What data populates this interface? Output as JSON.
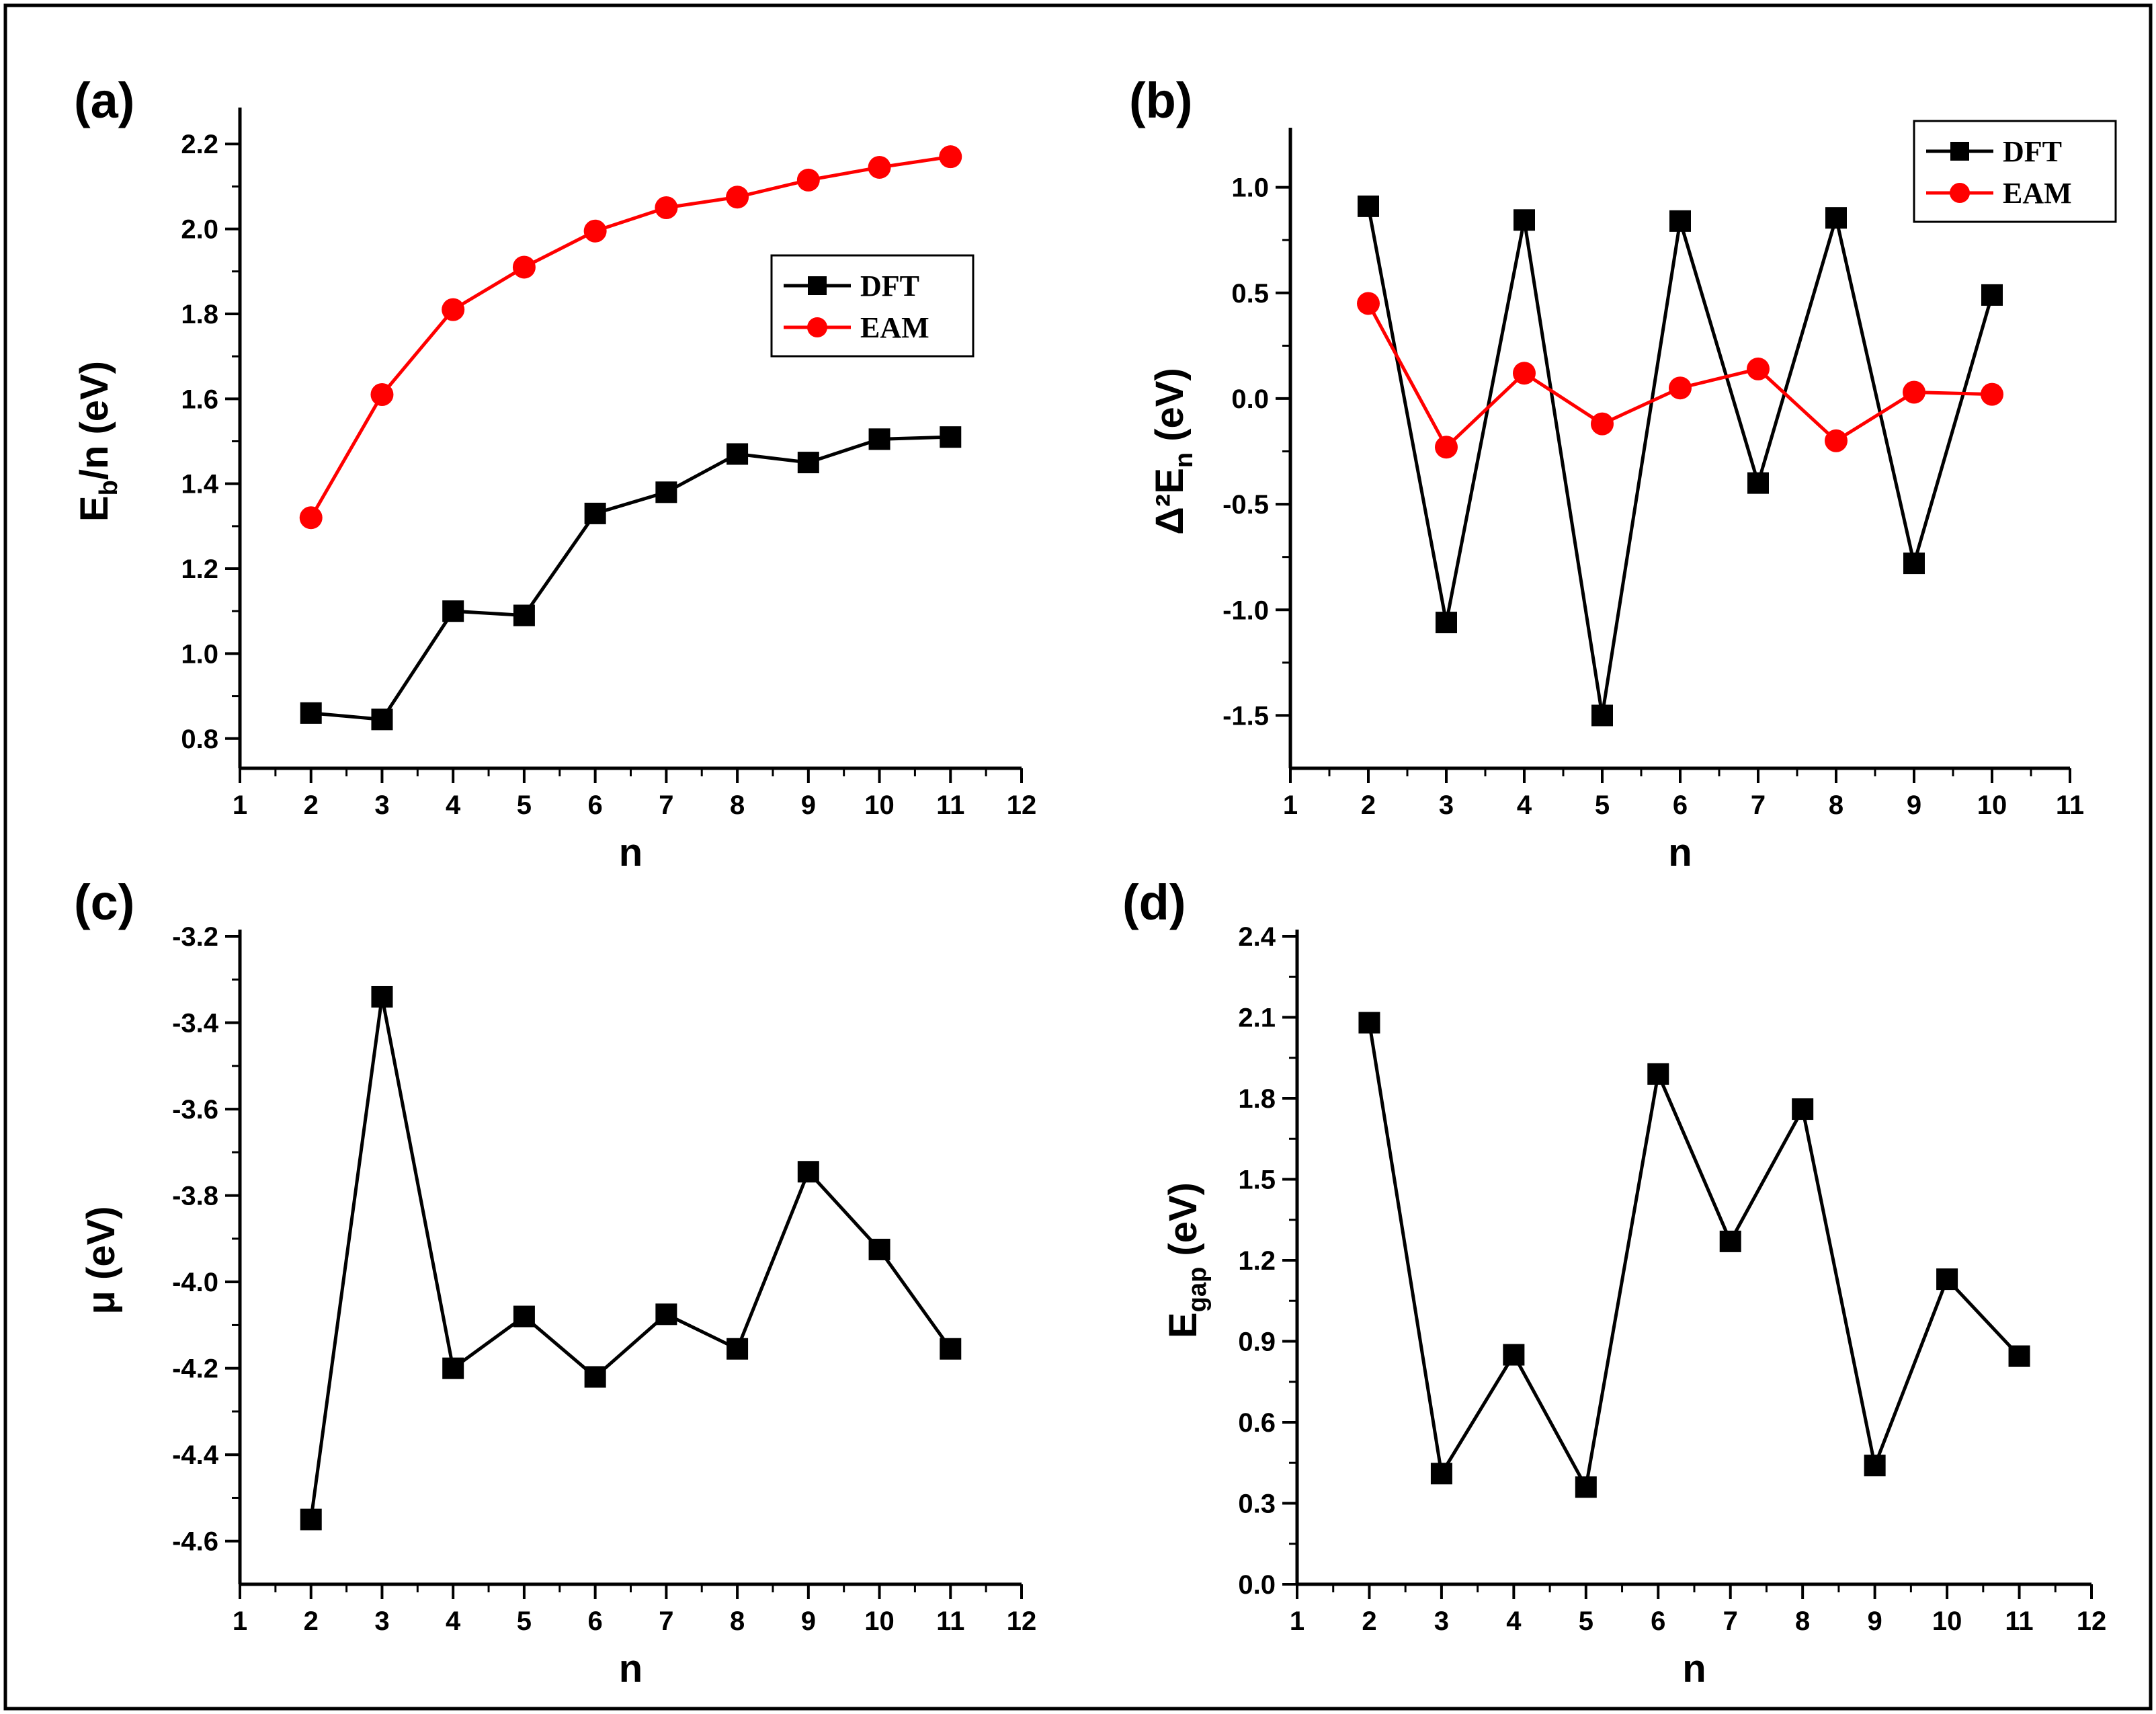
{
  "colors": {
    "dft": "#000000",
    "eam": "#ff0000",
    "axis": "#000000"
  },
  "chart_data": [
    {
      "panel": "(a)",
      "type": "line",
      "x": [
        2,
        3,
        4,
        5,
        6,
        7,
        8,
        9,
        10,
        11
      ],
      "xlabel": "n",
      "ylabel_main": "E",
      "ylabel_sub": "b",
      "ylabel_rest": "/n (eV)",
      "xlim": [
        1,
        12
      ],
      "ylim": [
        0.73,
        2.27
      ],
      "xticks": [
        1,
        2,
        3,
        4,
        5,
        6,
        7,
        8,
        9,
        10,
        11,
        12
      ],
      "yticks": [
        0.8,
        1.0,
        1.2,
        1.4,
        1.6,
        1.8,
        2.0,
        2.2
      ],
      "ytick_labels": [
        "0.8",
        "1.0",
        "1.2",
        "1.4",
        "1.6",
        "1.8",
        "2.0",
        "2.2"
      ],
      "legend": "center-right",
      "series": [
        {
          "name": "DFT",
          "marker": "square",
          "color": "#000000",
          "values": [
            0.86,
            0.845,
            1.1,
            1.09,
            1.33,
            1.38,
            1.47,
            1.45,
            1.505,
            1.51
          ]
        },
        {
          "name": "EAM",
          "marker": "circle",
          "color": "#ff0000",
          "values": [
            1.32,
            1.61,
            1.81,
            1.91,
            1.995,
            2.05,
            2.075,
            2.115,
            2.145,
            2.17
          ]
        }
      ]
    },
    {
      "panel": "(b)",
      "type": "line",
      "x": [
        2,
        3,
        4,
        5,
        6,
        7,
        8,
        9,
        10
      ],
      "xlabel": "n",
      "ylabel_main": "Δ²E",
      "ylabel_sub": "n",
      "ylabel_rest": " (eV)",
      "xlim": [
        1,
        11
      ],
      "ylim": [
        -1.75,
        1.25
      ],
      "xticks": [
        1,
        2,
        3,
        4,
        5,
        6,
        7,
        8,
        9,
        10,
        11
      ],
      "yticks": [
        -1.5,
        -1.0,
        -0.5,
        0.0,
        0.5,
        1.0
      ],
      "ytick_labels": [
        "-1.5",
        "-1.0",
        "-0.5",
        "0.0",
        "0.5",
        "1.0"
      ],
      "legend": "top-right",
      "series": [
        {
          "name": "DFT",
          "marker": "square",
          "color": "#000000",
          "values": [
            0.91,
            -1.06,
            0.845,
            -1.5,
            0.84,
            -0.4,
            0.855,
            -0.78,
            0.49
          ]
        },
        {
          "name": "EAM",
          "marker": "circle",
          "color": "#ff0000",
          "values": [
            0.45,
            -0.23,
            0.12,
            -0.12,
            0.05,
            0.14,
            -0.2,
            0.03,
            0.02
          ]
        }
      ]
    },
    {
      "panel": "(c)",
      "type": "line",
      "x": [
        2,
        3,
        4,
        5,
        6,
        7,
        8,
        9,
        10,
        11
      ],
      "xlabel": "n",
      "ylabel_main": "μ (eV)",
      "ylabel_sub": "",
      "ylabel_rest": "",
      "xlim": [
        1,
        12
      ],
      "ylim": [
        -4.7,
        -3.2
      ],
      "xticks": [
        1,
        2,
        3,
        4,
        5,
        6,
        7,
        8,
        9,
        10,
        11,
        12
      ],
      "yticks": [
        -4.6,
        -4.4,
        -4.2,
        -4.0,
        -3.8,
        -3.6,
        -3.4,
        -3.2
      ],
      "ytick_labels": [
        "-4.6",
        "-4.4",
        "-4.2",
        "-4.0",
        "-3.8",
        "-3.6",
        "-3.4",
        "-3.2"
      ],
      "legend": "none",
      "series": [
        {
          "name": "DFT",
          "marker": "square",
          "color": "#000000",
          "values": [
            -4.55,
            -3.34,
            -4.2,
            -4.08,
            -4.22,
            -4.075,
            -4.155,
            -3.745,
            -3.925,
            -4.155
          ]
        }
      ]
    },
    {
      "panel": "(d)",
      "type": "line",
      "x": [
        2,
        3,
        4,
        5,
        6,
        7,
        8,
        9,
        10,
        11
      ],
      "xlabel": "n",
      "ylabel_main": "E",
      "ylabel_sub": "gap",
      "ylabel_rest": " (eV)",
      "xlim": [
        1,
        12
      ],
      "ylim": [
        0.0,
        2.4
      ],
      "xticks": [
        1,
        2,
        3,
        4,
        5,
        6,
        7,
        8,
        9,
        10,
        11,
        12
      ],
      "yticks": [
        0.0,
        0.3,
        0.6,
        0.9,
        1.2,
        1.5,
        1.8,
        2.1,
        2.4
      ],
      "ytick_labels": [
        "0.0",
        "0.3",
        "0.6",
        "0.9",
        "1.2",
        "1.5",
        "1.8",
        "2.1",
        "2.4"
      ],
      "legend": "none",
      "series": [
        {
          "name": "DFT",
          "marker": "square",
          "color": "#000000",
          "values": [
            2.08,
            0.41,
            0.85,
            0.36,
            1.89,
            1.27,
            1.76,
            0.44,
            1.13,
            0.845
          ]
        }
      ]
    }
  ]
}
